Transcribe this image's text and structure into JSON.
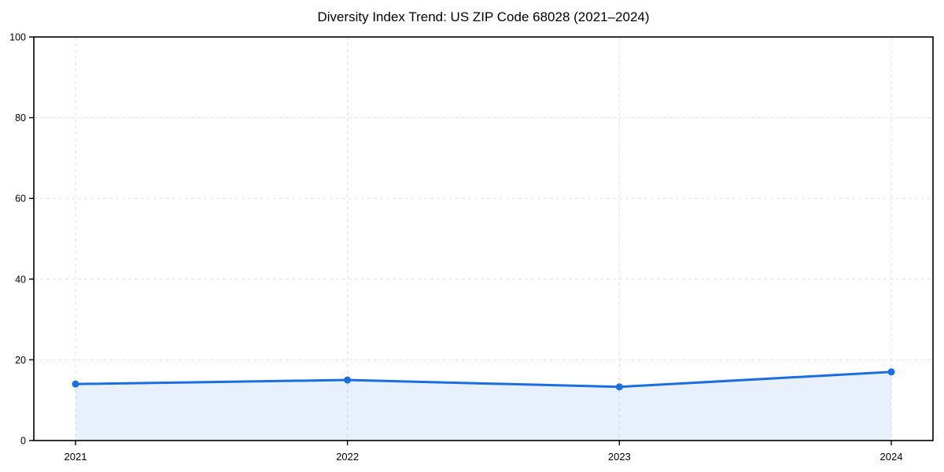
{
  "chart_data": {
    "type": "area",
    "title": "Diversity Index Trend: US ZIP Code 68028 (2021–2024)",
    "categories": [
      "2021",
      "2022",
      "2023",
      "2024"
    ],
    "series": [
      {
        "name": "Diversity Index",
        "values": [
          14,
          15,
          13.3,
          17
        ]
      }
    ],
    "xlabel": "",
    "ylabel": "",
    "ylim": [
      0,
      100
    ],
    "y_ticks": [
      0,
      20,
      40,
      60,
      80,
      100
    ],
    "grid": "dashed-both-axes",
    "legend_position": "none",
    "colors": {
      "line": "#1b6edf",
      "marker": "#1b6edf",
      "fill": "#1b6edf",
      "fill_opacity": 0.1,
      "gridline": "#e0e0e0",
      "spine": "#000000",
      "tick_label": "#000000"
    }
  }
}
